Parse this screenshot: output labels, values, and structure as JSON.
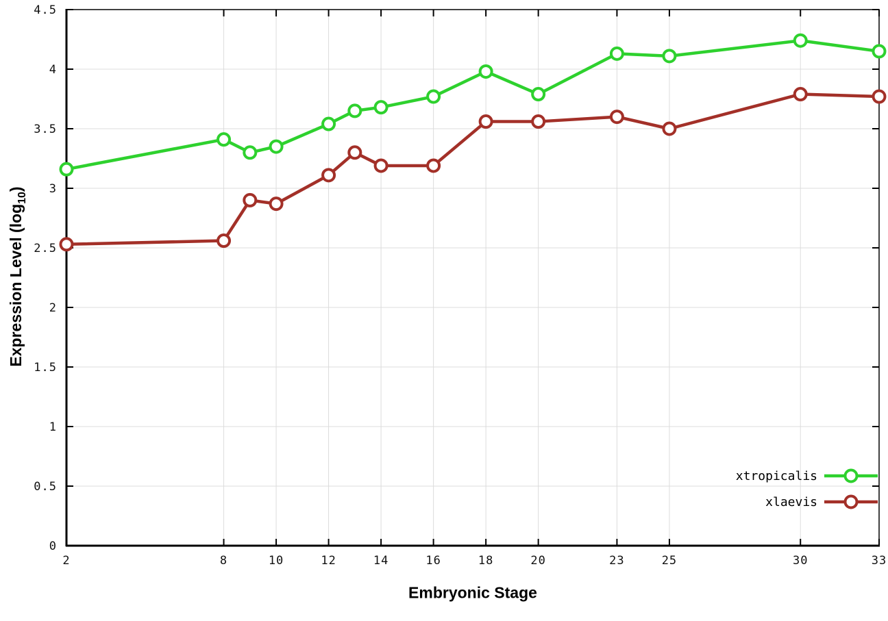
{
  "chart_data": {
    "type": "line",
    "title": "",
    "xlabel": "Embryonic Stage",
    "ylabel": "Expression Level (log10)",
    "ylabel_parts": {
      "pre": "Expression Level (log",
      "sub": "10",
      "post": ")"
    },
    "xlim": [
      2,
      33
    ],
    "ylim": [
      0,
      4.5
    ],
    "x_ticks": [
      2,
      8,
      10,
      12,
      14,
      16,
      18,
      20,
      23,
      25,
      30,
      33
    ],
    "y_ticks": [
      0,
      0.5,
      1,
      1.5,
      2,
      2.5,
      3,
      3.5,
      4,
      4.5
    ],
    "grid": true,
    "legend_position": "bottom-right",
    "x": [
      2,
      8,
      9,
      10,
      12,
      13,
      14,
      16,
      18,
      20,
      23,
      25,
      30,
      33
    ],
    "series": [
      {
        "name": "xtropicalis",
        "color": "#2ed12e",
        "values": [
          3.16,
          3.41,
          3.3,
          3.35,
          3.54,
          3.65,
          3.68,
          3.77,
          3.98,
          3.79,
          4.13,
          4.11,
          4.24,
          4.15
        ]
      },
      {
        "name": "xlaevis",
        "color": "#a33028",
        "values": [
          2.53,
          2.56,
          2.9,
          2.87,
          3.11,
          3.3,
          3.19,
          3.19,
          3.56,
          3.56,
          3.6,
          3.5,
          3.79,
          3.77
        ]
      }
    ]
  },
  "colors": {
    "grid": "#dcdcdc",
    "axis": "#000000",
    "tick_text": "#111111",
    "background": "#ffffff"
  }
}
